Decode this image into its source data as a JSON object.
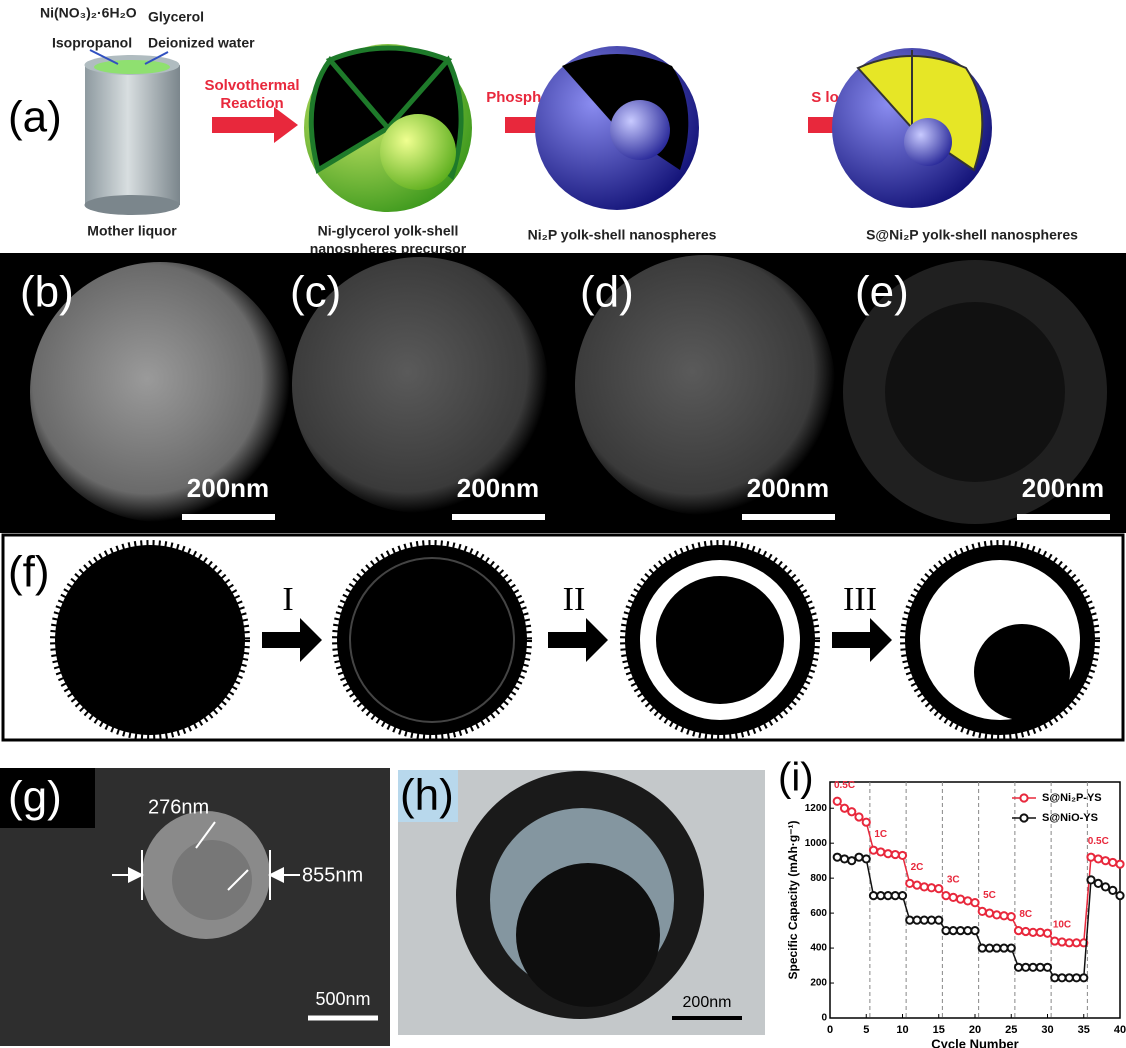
{
  "schematic": {
    "label": "(a)",
    "reagents": [
      "Ni(NO₃)₂·6H₂O",
      "Glycerol",
      "Isopropanol",
      "Deionized water"
    ],
    "steps": [
      [
        "Solvothermal",
        "Reaction"
      ],
      [
        "Phosphorization"
      ],
      [
        "S loading"
      ]
    ],
    "captions": [
      [
        "Mother liquor"
      ],
      [
        "Ni-glycerol yolk-shell",
        "nanospheres precursor"
      ],
      [
        "Ni₂P yolk-shell nanospheres"
      ],
      [
        "S@Ni₂P yolk-shell nanospheres"
      ]
    ]
  },
  "micrographs": [
    {
      "label": "(b)",
      "scale": "200nm"
    },
    {
      "label": "(c)",
      "scale": "200nm"
    },
    {
      "label": "(d)",
      "scale": "200nm"
    },
    {
      "label": "(e)",
      "scale": "200nm"
    }
  ],
  "evolution": {
    "label": "(f)",
    "steps": [
      "I",
      "II",
      "III"
    ]
  },
  "sem": {
    "label": "(g)",
    "dimensions": [
      "276nm",
      "855nm"
    ],
    "scale": "500nm"
  },
  "tem": {
    "label": "(h)",
    "scale": "200nm"
  },
  "chart_data": {
    "type": "line",
    "label": "(i)",
    "x_label": "Cycle Number",
    "y_label": "Specific Capacity (mAh·g⁻¹)",
    "x": [
      1,
      2,
      3,
      4,
      5,
      6,
      7,
      8,
      9,
      10,
      11,
      12,
      13,
      14,
      15,
      16,
      17,
      18,
      19,
      20,
      21,
      22,
      23,
      24,
      25,
      26,
      27,
      28,
      29,
      30,
      31,
      32,
      33,
      34,
      35,
      36,
      37,
      38,
      39,
      40
    ],
    "series": [
      {
        "name": "S@Ni₂P-YS",
        "color": "#e8283c",
        "values": [
          1240,
          1200,
          1180,
          1150,
          1120,
          960,
          950,
          940,
          935,
          930,
          770,
          760,
          750,
          745,
          740,
          700,
          690,
          680,
          670,
          660,
          610,
          600,
          590,
          585,
          580,
          500,
          495,
          490,
          490,
          485,
          440,
          435,
          430,
          430,
          430,
          920,
          910,
          900,
          890,
          880
        ]
      },
      {
        "name": "S@NiO-YS",
        "color": "#111111",
        "values": [
          920,
          910,
          900,
          920,
          910,
          700,
          700,
          700,
          700,
          700,
          560,
          560,
          560,
          560,
          560,
          500,
          500,
          500,
          500,
          500,
          400,
          400,
          400,
          400,
          400,
          290,
          290,
          290,
          290,
          290,
          230,
          230,
          230,
          230,
          230,
          790,
          770,
          750,
          730,
          700
        ]
      }
    ],
    "annotations": [
      "0.5C",
      "1C",
      "2C",
      "3C",
      "5C",
      "8C",
      "10C",
      "0.5C"
    ],
    "xlim": [
      0,
      40
    ],
    "xticks": [
      0,
      5,
      10,
      15,
      20,
      25,
      30,
      35,
      40
    ],
    "ylim": [
      0,
      1350
    ],
    "yticks": [
      0,
      200,
      400,
      600,
      800,
      1000,
      1200
    ],
    "grid": false,
    "legend": "upper right"
  }
}
